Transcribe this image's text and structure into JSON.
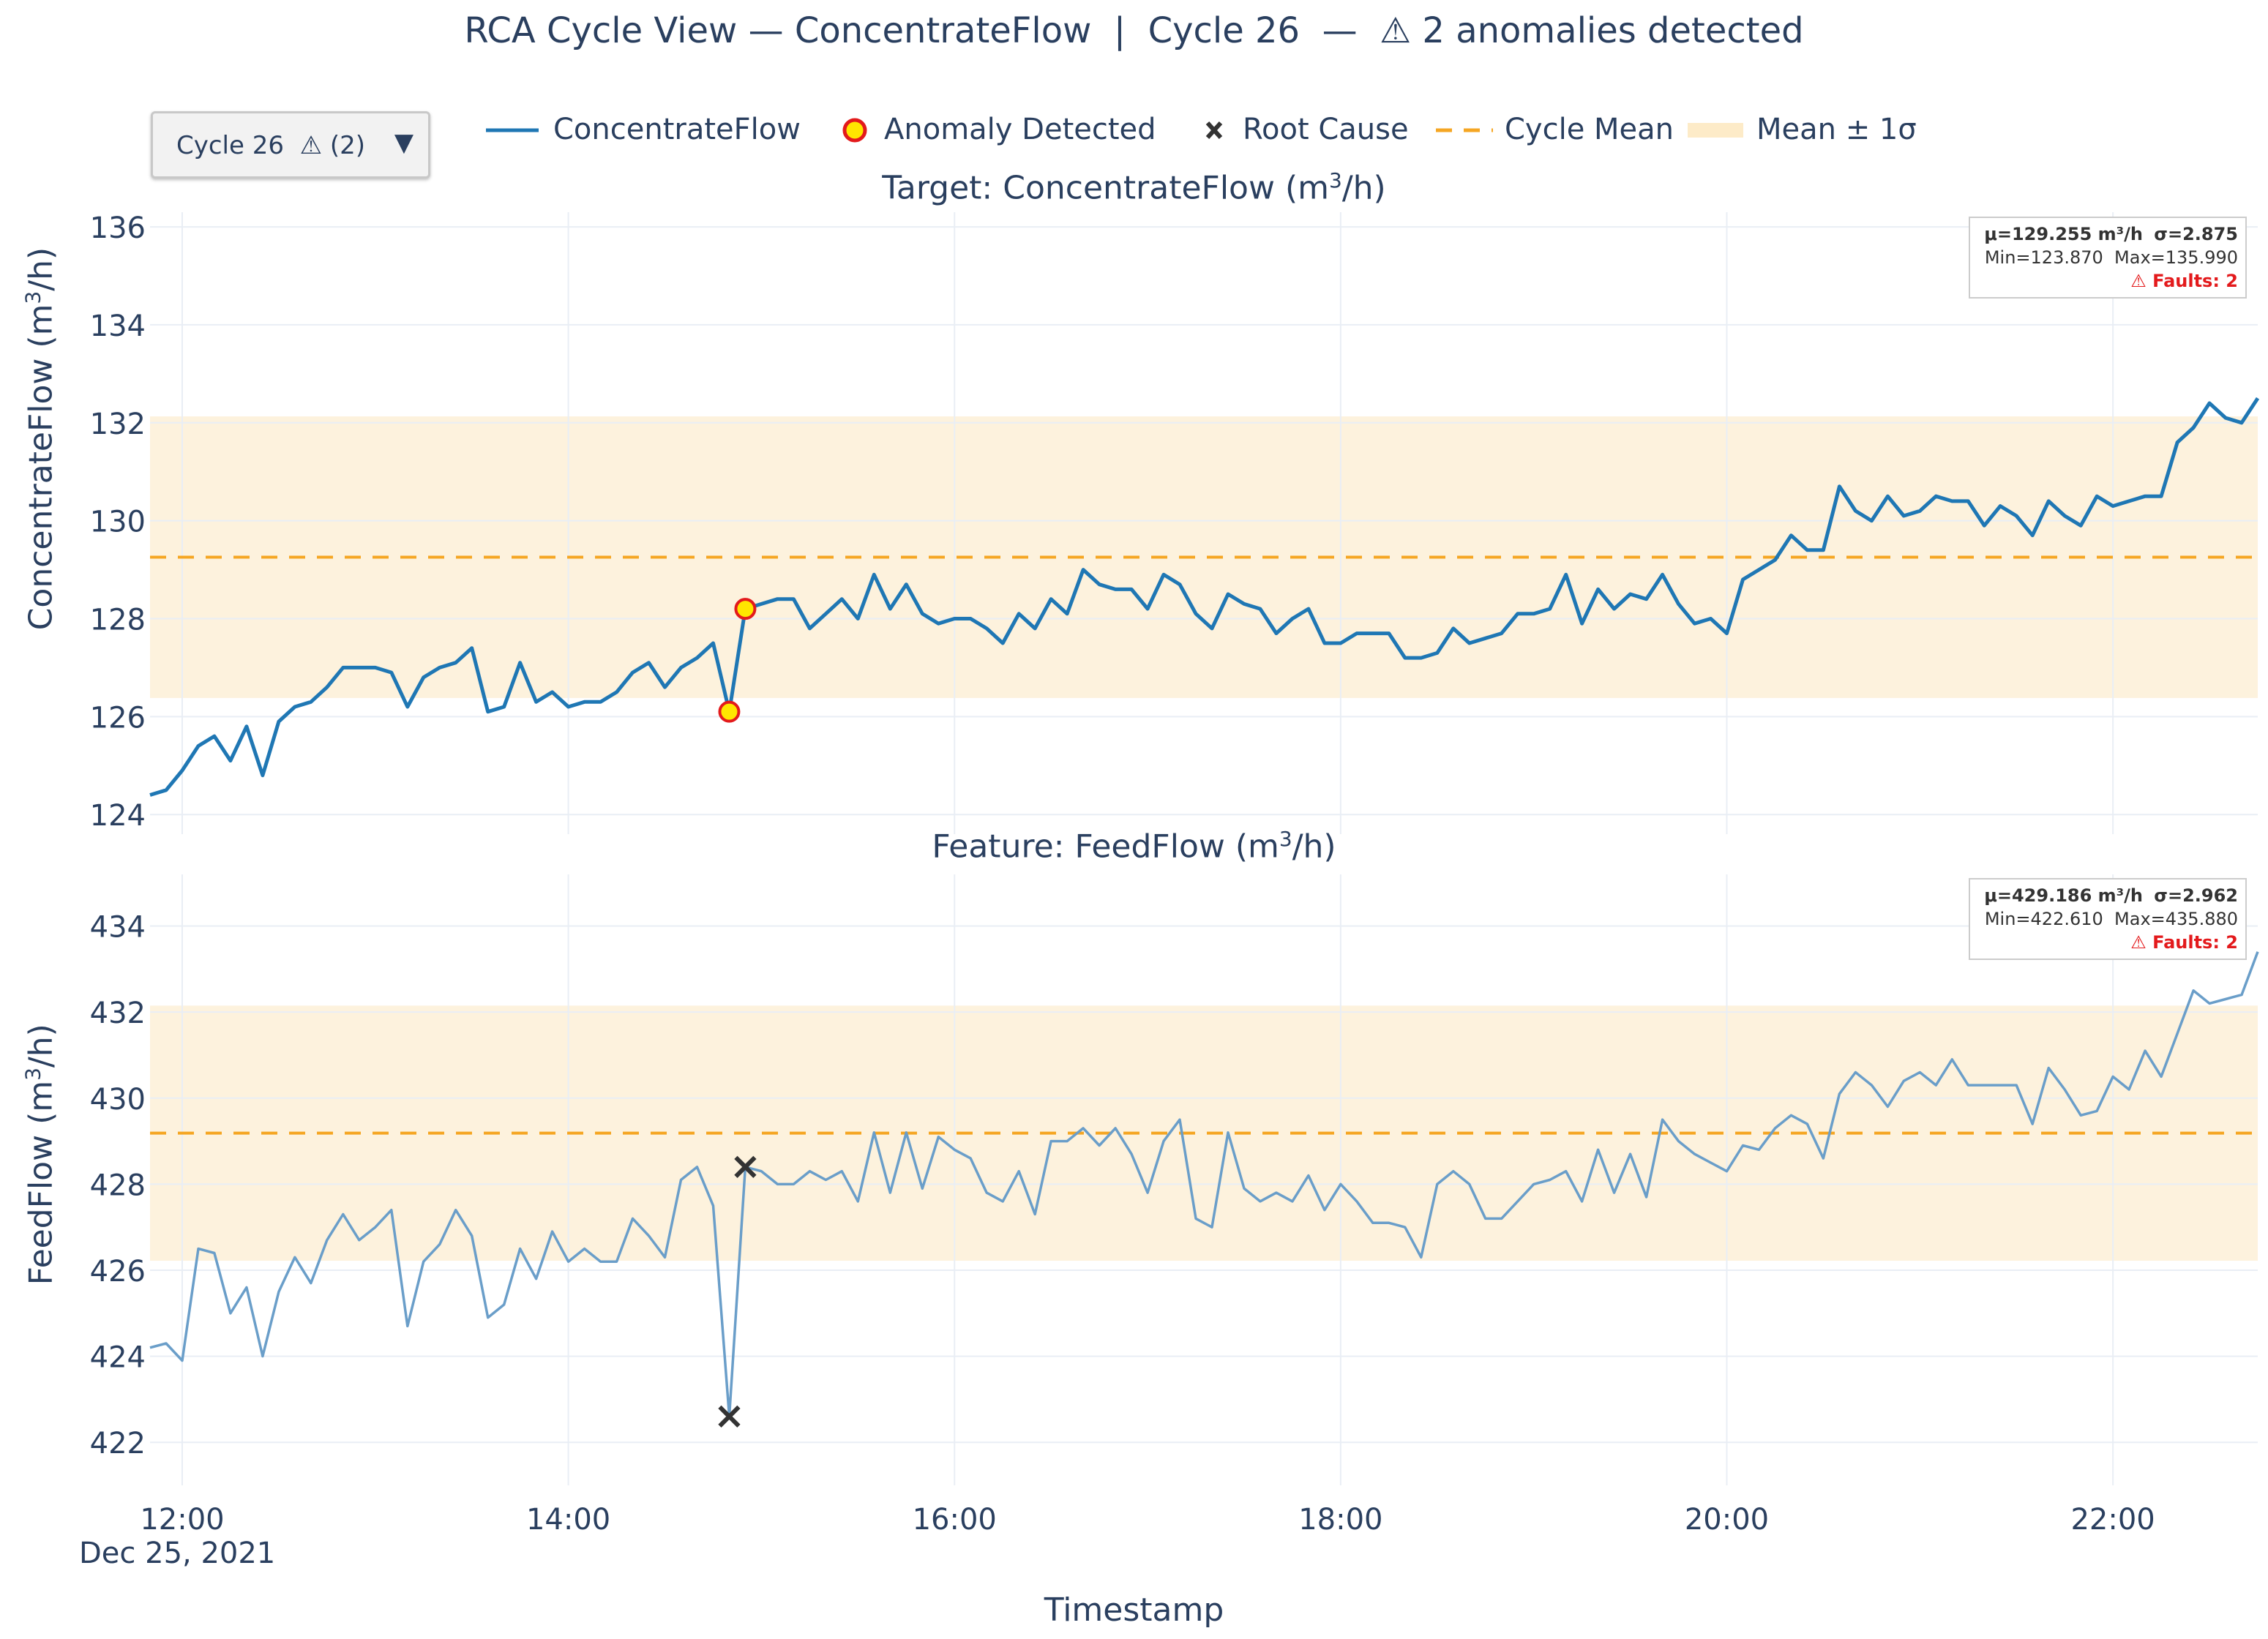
{
  "title": "RCA Cycle View — ConcentrateFlow  |  Cycle 26  —  ⚠ 2 anomalies detected",
  "cycle_selector": {
    "value": "Cycle 26  ⚠ (2)",
    "arrow_icon": "triangle-down-icon"
  },
  "legend": {
    "items": [
      {
        "label": "ConcentrateFlow",
        "symbol": "line",
        "color": "#1f77b4"
      },
      {
        "label": "Anomaly Detected",
        "symbol": "circle",
        "color": "#ffe600",
        "edge": "#e31a1c"
      },
      {
        "label": "Root Cause",
        "symbol": "x",
        "color": "#333333"
      },
      {
        "label": "Cycle Mean",
        "symbol": "dash",
        "color": "#f5a623"
      },
      {
        "label": "Mean ± 1σ",
        "symbol": "band",
        "color": "#fdebc8"
      }
    ]
  },
  "colors": {
    "line": "#1f77b4",
    "line_light": "#6a9ec9",
    "mean": "#f5a623",
    "band": "#fdf2dd",
    "grid": "#e9eef5",
    "fault_text": "#e31a1c"
  },
  "chart_data": [
    {
      "type": "line",
      "title": "Target: ConcentrateFlow (m³/h)",
      "title_prefix": "Target: ConcentrateFlow (m",
      "title_sup": "3",
      "title_suffix": "/h)",
      "ylabel": "ConcentrateFlow (m³/h)",
      "ylabel_prefix": "ConcentrateFlow (m",
      "ylabel_sup": "3",
      "ylabel_suffix": "/h)",
      "xlabel": "Timestamp",
      "x_start": "2021-12-25 11:50",
      "x_step_minutes": 5,
      "x_range": [
        "2021-12-25 11:50",
        "2021-12-25 22:45"
      ],
      "x_ticks": [
        "12:00",
        "14:00",
        "16:00",
        "18:00",
        "20:00",
        "22:00"
      ],
      "x_tick_date": "Dec 25, 2021",
      "ylim": [
        123.6,
        136.3
      ],
      "y_ticks": [
        124,
        126,
        128,
        130,
        132,
        134,
        136
      ],
      "mean": 129.255,
      "band": [
        126.38,
        132.13
      ],
      "stats": {
        "line1_mu": "μ=129.255 m³/h",
        "line1_sigma": "σ=2.875",
        "line2": "Min=123.870  Max=135.990",
        "line3": "⚠ Faults: 2"
      },
      "values": [
        124.4,
        124.5,
        124.9,
        125.4,
        125.6,
        125.1,
        125.8,
        124.8,
        125.9,
        126.2,
        126.3,
        126.6,
        127.0,
        127.0,
        127.0,
        126.9,
        126.2,
        126.8,
        127.0,
        127.1,
        127.4,
        126.1,
        126.2,
        127.1,
        126.3,
        126.5,
        126.2,
        126.3,
        126.3,
        126.5,
        126.9,
        127.1,
        126.6,
        127.0,
        127.2,
        127.5,
        126.1,
        128.2,
        128.3,
        128.4,
        128.4,
        127.8,
        128.1,
        128.4,
        128.0,
        128.9,
        128.2,
        128.7,
        128.1,
        127.9,
        128.0,
        128.0,
        127.8,
        127.5,
        128.1,
        127.8,
        128.4,
        128.1,
        129.0,
        128.7,
        128.6,
        128.6,
        128.2,
        128.9,
        128.7,
        128.1,
        127.8,
        128.5,
        128.3,
        128.2,
        127.7,
        128.0,
        128.2,
        127.5,
        127.5,
        127.7,
        127.7,
        127.7,
        127.2,
        127.2,
        127.3,
        127.8,
        127.5,
        127.6,
        127.7,
        128.1,
        128.1,
        128.2,
        128.9,
        127.9,
        128.6,
        128.2,
        128.5,
        128.4,
        128.9,
        128.3,
        127.9,
        128.0,
        127.7,
        128.8,
        129.0,
        129.2,
        129.7,
        129.4,
        129.4,
        130.7,
        130.2,
        130.0,
        130.5,
        130.1,
        130.2,
        130.5,
        130.4,
        130.4,
        129.9,
        130.3,
        130.1,
        129.7,
        130.4,
        130.1,
        129.9,
        130.5,
        130.3,
        130.4,
        130.5,
        130.5,
        131.6,
        131.9,
        132.4,
        132.1,
        132.0,
        132.5
      ],
      "anomalies": [
        {
          "time": "14:50",
          "value": 126.1
        },
        {
          "time": "14:55",
          "value": 128.2
        }
      ]
    },
    {
      "type": "line",
      "title": "Feature: FeedFlow (m³/h)",
      "title_prefix": "Feature: FeedFlow (m",
      "title_sup": "3",
      "title_suffix": "/h)",
      "ylabel": "FeedFlow (m³/h)",
      "ylabel_prefix": "FeedFlow (m",
      "ylabel_sup": "3",
      "ylabel_suffix": "/h)",
      "x_start": "2021-12-25 11:50",
      "x_step_minutes": 5,
      "ylim": [
        421.0,
        435.2
      ],
      "y_ticks": [
        422,
        424,
        426,
        428,
        430,
        432,
        434
      ],
      "mean": 429.186,
      "band": [
        426.22,
        432.15
      ],
      "stats": {
        "line1_mu": "μ=429.186 m³/h",
        "line1_sigma": "σ=2.962",
        "line2": "Min=422.610  Max=435.880",
        "line3": "⚠ Faults: 2"
      },
      "values": [
        424.2,
        424.3,
        423.9,
        426.5,
        426.4,
        425.0,
        425.6,
        424.0,
        425.5,
        426.3,
        425.7,
        426.7,
        427.3,
        426.7,
        427.0,
        427.4,
        424.7,
        426.2,
        426.6,
        427.4,
        426.8,
        424.9,
        425.2,
        426.5,
        425.8,
        426.9,
        426.2,
        426.5,
        426.2,
        426.2,
        427.2,
        426.8,
        426.3,
        428.1,
        428.4,
        427.5,
        422.6,
        428.4,
        428.3,
        428.0,
        428.0,
        428.3,
        428.1,
        428.3,
        427.6,
        429.2,
        427.8,
        429.2,
        427.9,
        429.1,
        428.8,
        428.6,
        427.8,
        427.6,
        428.3,
        427.3,
        429.0,
        429.0,
        429.3,
        428.9,
        429.3,
        428.7,
        427.8,
        429.0,
        429.5,
        427.2,
        427.0,
        429.2,
        427.9,
        427.6,
        427.8,
        427.6,
        428.2,
        427.4,
        428.0,
        427.6,
        427.1,
        427.1,
        427.0,
        426.3,
        428.0,
        428.3,
        428.0,
        427.2,
        427.2,
        427.6,
        428.0,
        428.1,
        428.3,
        427.6,
        428.8,
        427.8,
        428.7,
        427.7,
        429.5,
        429.0,
        428.7,
        428.5,
        428.3,
        428.9,
        428.8,
        429.3,
        429.6,
        429.4,
        428.6,
        430.1,
        430.6,
        430.3,
        429.8,
        430.4,
        430.6,
        430.3,
        430.9,
        430.3,
        430.3,
        430.3,
        430.3,
        429.4,
        430.7,
        430.2,
        429.6,
        429.7,
        430.5,
        430.2,
        431.1,
        430.5,
        431.5,
        432.5,
        432.2,
        432.3,
        432.4,
        433.4
      ],
      "root_causes": [
        {
          "time": "14:50",
          "value": 422.6
        },
        {
          "time": "14:55",
          "value": 428.4
        }
      ]
    }
  ]
}
